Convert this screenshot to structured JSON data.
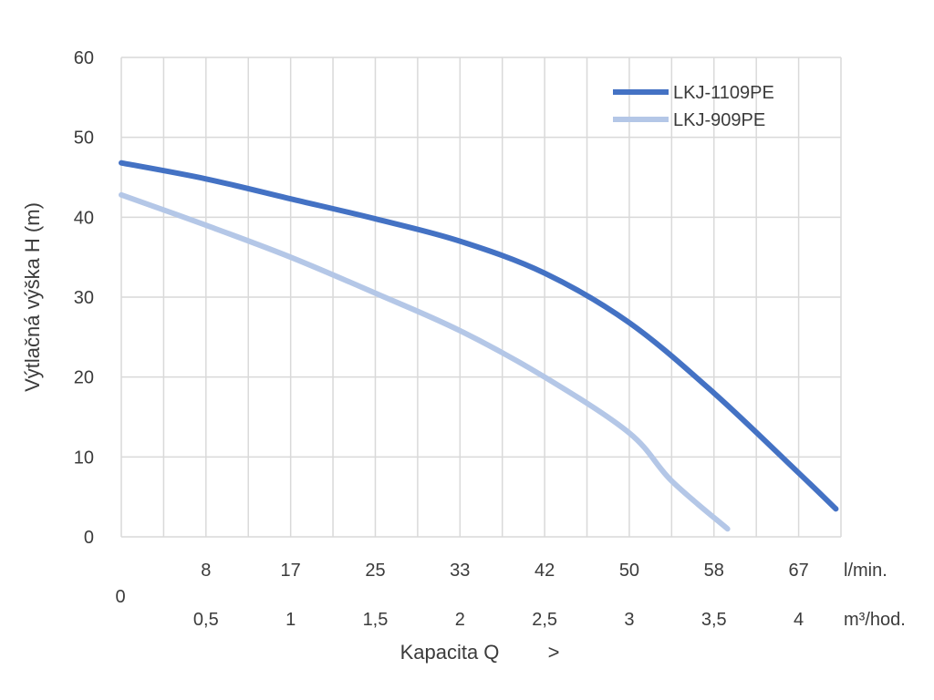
{
  "chart_data": {
    "type": "line",
    "ylabel": "Výtlačná výška H (m)",
    "xlabel": "Kapacita Q",
    "xlabel_arrow": ">",
    "x_origin_label": "0",
    "ylim": [
      0,
      60
    ],
    "yticks": [
      "0",
      "10",
      "20",
      "30",
      "40",
      "50",
      "60"
    ],
    "xlim": [
      0,
      4.25
    ],
    "grid": true,
    "legend_position": "top-right",
    "x_axis_lmin": {
      "unit": "l/min.",
      "ticks": [
        {
          "x": 0.5,
          "label": "8"
        },
        {
          "x": 1.0,
          "label": "17"
        },
        {
          "x": 1.5,
          "label": "25"
        },
        {
          "x": 2.0,
          "label": "33"
        },
        {
          "x": 2.5,
          "label": "42"
        },
        {
          "x": 3.0,
          "label": "50"
        },
        {
          "x": 3.5,
          "label": "58"
        },
        {
          "x": 4.0,
          "label": "67"
        }
      ]
    },
    "x_axis_m3h": {
      "unit": "m³/hod.",
      "ticks": [
        {
          "x": 0.5,
          "label": "0,5"
        },
        {
          "x": 1.0,
          "label": "1"
        },
        {
          "x": 1.5,
          "label": "1,5"
        },
        {
          "x": 2.0,
          "label": "2"
        },
        {
          "x": 2.5,
          "label": "2,5"
        },
        {
          "x": 3.0,
          "label": "3"
        },
        {
          "x": 3.5,
          "label": "3,5"
        },
        {
          "x": 4.0,
          "label": "4"
        }
      ]
    },
    "series": [
      {
        "name": "LKJ-1109PE",
        "color": "#4472c4",
        "points": [
          [
            0,
            46.8
          ],
          [
            0.5,
            44.8
          ],
          [
            1.0,
            42.3
          ],
          [
            1.5,
            39.8
          ],
          [
            2.0,
            37.0
          ],
          [
            2.5,
            33.0
          ],
          [
            3.0,
            26.8
          ],
          [
            3.5,
            18.0
          ],
          [
            4.0,
            8.0
          ],
          [
            4.22,
            3.5
          ]
        ]
      },
      {
        "name": "LKJ-909PE",
        "color": "#b4c7e7",
        "points": [
          [
            0,
            42.8
          ],
          [
            0.5,
            39.0
          ],
          [
            1.0,
            35.0
          ],
          [
            1.5,
            30.5
          ],
          [
            2.0,
            25.8
          ],
          [
            2.5,
            20.0
          ],
          [
            3.0,
            13.0
          ],
          [
            3.25,
            7.0
          ],
          [
            3.58,
            1.0
          ]
        ]
      }
    ]
  }
}
